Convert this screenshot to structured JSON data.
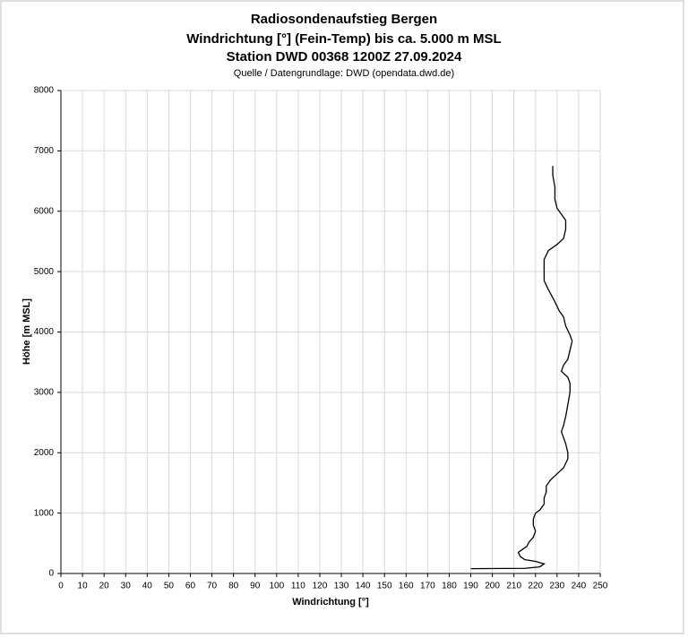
{
  "chart_data": {
    "type": "line",
    "title": "Radiosondenaufstieg Bergen",
    "subtitle": [
      "Windrichtung [°] (Fein-Temp) bis ca. 5.000 m MSL",
      "Station DWD 00368 1200Z 27.09.2024"
    ],
    "source": "Quelle / Datengrundlage: DWD (opendata.dwd.de)",
    "x_label": "Windrichtung [°]",
    "y_label": "Höhe [m MSL]",
    "color": "#000000",
    "grid": true,
    "xlim": [
      0,
      250
    ],
    "xticks": [
      0,
      10,
      20,
      30,
      40,
      50,
      60,
      70,
      80,
      90,
      100,
      110,
      120,
      130,
      140,
      150,
      160,
      170,
      180,
      190,
      200,
      210,
      220,
      230,
      240,
      250
    ],
    "ylim": [
      0,
      8000
    ],
    "yticks": [
      0,
      1000,
      2000,
      3000,
      4000,
      5000,
      6000,
      7000,
      8000
    ],
    "x": [
      190,
      215,
      222,
      224,
      220,
      215,
      213,
      212,
      214,
      216,
      217,
      219,
      220,
      219,
      219,
      220,
      222,
      224,
      224,
      225,
      225,
      227,
      230,
      233,
      235,
      235,
      234,
      233,
      232,
      233,
      234,
      235,
      236,
      236,
      235,
      232,
      233,
      235,
      236,
      237,
      236,
      234,
      233,
      231,
      229,
      226,
      224,
      224,
      224,
      226,
      230,
      233,
      234,
      234,
      232,
      230,
      229,
      229,
      228,
      228
    ],
    "values": [
      80,
      85,
      110,
      160,
      200,
      230,
      280,
      350,
      400,
      450,
      520,
      600,
      700,
      800,
      900,
      1000,
      1050,
      1150,
      1250,
      1350,
      1450,
      1550,
      1650,
      1750,
      1900,
      2000,
      2150,
      2250,
      2350,
      2450,
      2600,
      2800,
      3000,
      3150,
      3250,
      3350,
      3450,
      3550,
      3700,
      3850,
      3950,
      4100,
      4250,
      4350,
      4500,
      4700,
      4850,
      5000,
      5200,
      5350,
      5450,
      5550,
      5700,
      5850,
      5950,
      6050,
      6200,
      6400,
      6600,
      6750
    ]
  }
}
